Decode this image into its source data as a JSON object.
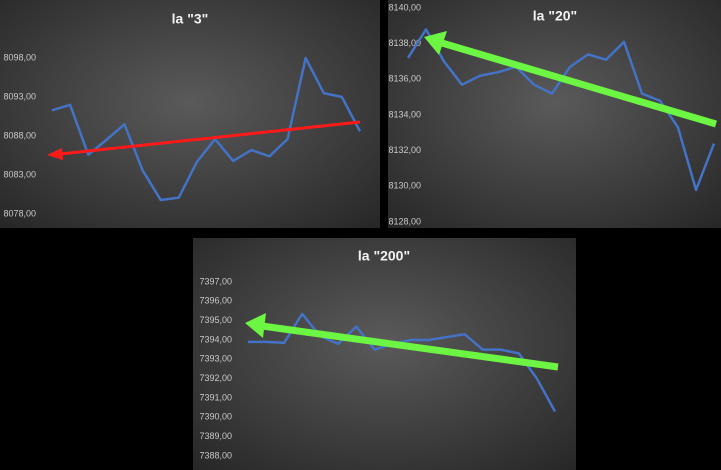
{
  "chart_data": [
    {
      "type": "line",
      "title": "la \"3\"",
      "series": [
        {
          "name": null,
          "color": "#4472c4",
          "values": [
            8091.3,
            8092.0,
            8085.6,
            8087.5,
            8089.5,
            8083.6,
            8079.8,
            8080.1,
            8084.7,
            8087.6,
            8084.8,
            8086.2,
            8085.4,
            8087.6,
            8098.0,
            8093.5,
            8093.0,
            8088.6
          ]
        }
      ],
      "ylim": [
        8078,
        8103
      ],
      "yticks": [
        {
          "value": 8078,
          "label": "8078,00"
        },
        {
          "value": 8083,
          "label": "8083,00"
        },
        {
          "value": 8088,
          "label": "8088,00"
        },
        {
          "value": 8093,
          "label": "8093,00"
        },
        {
          "value": 8098,
          "label": "8098,00"
        }
      ]
    },
    {
      "type": "line",
      "title": "la \"20\"",
      "series": [
        {
          "name": null,
          "color": "#4472c4",
          "values": [
            8137.2,
            8138.8,
            8137.0,
            8135.7,
            8136.2,
            8136.4,
            8136.7,
            8135.7,
            8135.2,
            8136.7,
            8137.4,
            8137.1,
            8138.1,
            8135.2,
            8134.8,
            8133.3,
            8129.8,
            8132.4
          ]
        }
      ],
      "ylim": [
        8128,
        8140
      ],
      "yticks": [
        {
          "value": 8128,
          "label": "8128,00"
        },
        {
          "value": 8130,
          "label": "8130,00"
        },
        {
          "value": 8132,
          "label": "8132,00"
        },
        {
          "value": 8134,
          "label": "8134,00"
        },
        {
          "value": 8136,
          "label": "8136,00"
        },
        {
          "value": 8138,
          "label": "8138,00"
        },
        {
          "value": 8140,
          "label": "8140,00"
        }
      ]
    },
    {
      "type": "line",
      "title": "la \"200\"",
      "series": [
        {
          "name": null,
          "color": "#4472c4",
          "values": [
            7393.9,
            7393.9,
            7393.85,
            7395.35,
            7394.2,
            7393.8,
            7394.7,
            7393.5,
            7393.8,
            7394.0,
            7394.0,
            7394.15,
            7394.3,
            7393.5,
            7393.5,
            7393.3,
            7392.0,
            7390.3
          ]
        }
      ],
      "ylim": [
        7388,
        7397
      ],
      "yticks": [
        {
          "value": 7388,
          "label": "7388,00"
        },
        {
          "value": 7389,
          "label": "7389,00"
        },
        {
          "value": 7390,
          "label": "7390,00"
        },
        {
          "value": 7391,
          "label": "7391,00"
        },
        {
          "value": 7392,
          "label": "7392,00"
        },
        {
          "value": 7393,
          "label": "7393,00"
        },
        {
          "value": 7394,
          "label": "7394,00"
        },
        {
          "value": 7395,
          "label": "7395,00"
        },
        {
          "value": 7396,
          "label": "7396,00"
        },
        {
          "value": 7397,
          "label": "7397,00"
        }
      ]
    }
  ]
}
